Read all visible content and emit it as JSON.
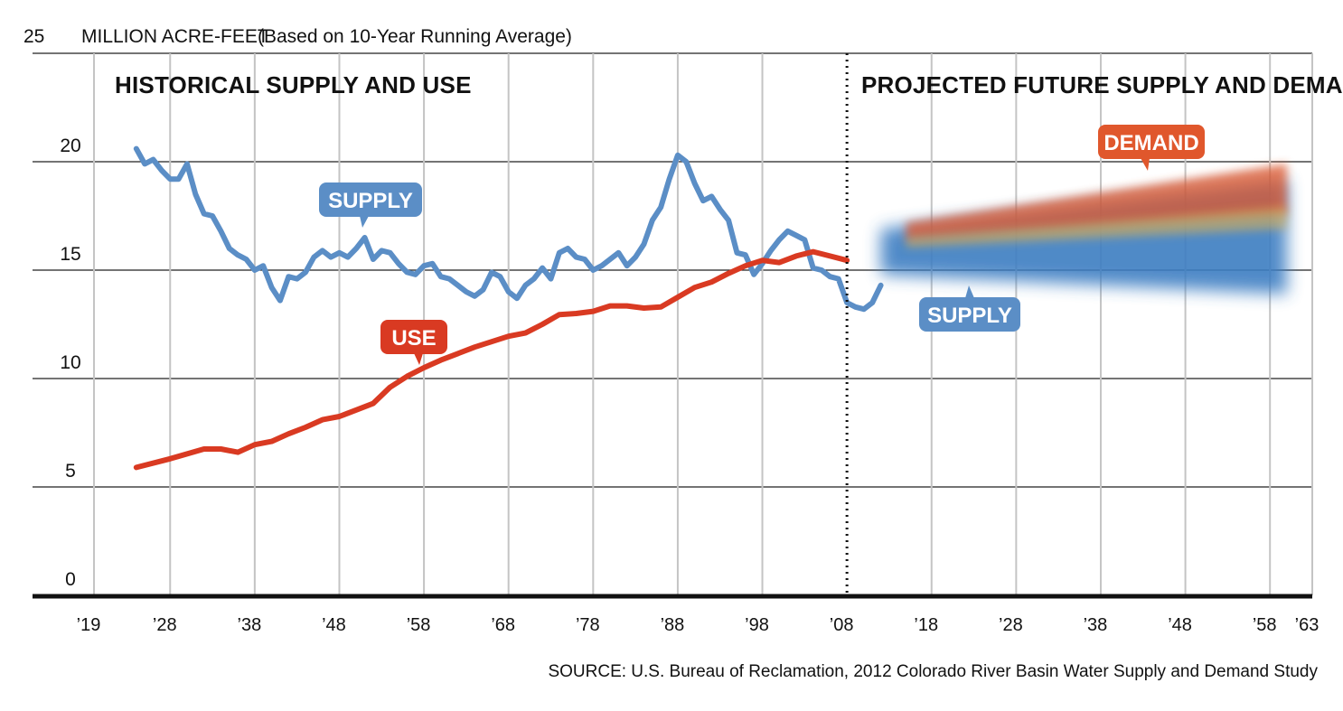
{
  "chart_data": {
    "type": "line",
    "title_units": "MILLION ACRE-FEET",
    "title_note": "(Based on 10-Year Running Average)",
    "section_historical": "HISTORICAL SUPPLY AND USE",
    "section_projected": "PROJECTED FUTURE SUPPLY AND DEMAND",
    "source": "SOURCE: U.S. Bureau of Reclamation, 2012 Colorado River Basin Water Supply and Demand Study",
    "ylim": [
      0,
      25
    ],
    "yticks": [
      0,
      5,
      10,
      15,
      20,
      25
    ],
    "xlim": [
      1919,
      2063
    ],
    "xticks": [
      {
        "year": 1919,
        "label": "’19"
      },
      {
        "year": 1928,
        "label": "’28"
      },
      {
        "year": 1938,
        "label": "’38"
      },
      {
        "year": 1948,
        "label": "’48"
      },
      {
        "year": 1958,
        "label": "’58"
      },
      {
        "year": 1968,
        "label": "’68"
      },
      {
        "year": 1978,
        "label": "’78"
      },
      {
        "year": 1988,
        "label": "’88"
      },
      {
        "year": 1998,
        "label": "’98"
      },
      {
        "year": 2008,
        "label": "’08"
      },
      {
        "year": 2018,
        "label": "’18"
      },
      {
        "year": 2028,
        "label": "’28"
      },
      {
        "year": 2038,
        "label": "’38"
      },
      {
        "year": 2048,
        "label": "’48"
      },
      {
        "year": 2058,
        "label": "’58"
      },
      {
        "year": 2063,
        "label": "’63"
      }
    ],
    "divider_year": 2008,
    "series": [
      {
        "name": "SUPPLY",
        "color": "#5b8ec6",
        "x": [
          1924,
          1925,
          1926,
          1927,
          1928,
          1929,
          1930,
          1931,
          1932,
          1933,
          1934,
          1935,
          1936,
          1937,
          1938,
          1939,
          1940,
          1941,
          1942,
          1943,
          1944,
          1945,
          1946,
          1947,
          1948,
          1949,
          1950,
          1951,
          1952,
          1953,
          1954,
          1955,
          1956,
          1957,
          1958,
          1959,
          1960,
          1961,
          1962,
          1963,
          1964,
          1965,
          1966,
          1967,
          1968,
          1969,
          1970,
          1971,
          1972,
          1973,
          1974,
          1975,
          1976,
          1977,
          1978,
          1979,
          1980,
          1981,
          1982,
          1983,
          1984,
          1985,
          1986,
          1987,
          1988,
          1989,
          1990,
          1991,
          1992,
          1993,
          1994,
          1995,
          1996,
          1997,
          1998,
          1999,
          2000,
          2001,
          2002,
          2003,
          2004,
          2005,
          2006,
          2007,
          2008,
          2009,
          2010,
          2011,
          2012
        ],
        "values": [
          20.6,
          19.9,
          20.1,
          19.6,
          19.2,
          19.2,
          19.9,
          18.5,
          17.6,
          17.5,
          16.8,
          16.0,
          15.7,
          15.5,
          15.0,
          15.2,
          14.2,
          13.6,
          14.7,
          14.6,
          14.9,
          15.6,
          15.9,
          15.6,
          15.8,
          15.6,
          16.0,
          16.5,
          15.5,
          15.9,
          15.8,
          15.3,
          14.9,
          14.8,
          15.2,
          15.3,
          14.7,
          14.6,
          14.3,
          14.0,
          13.8,
          14.1,
          14.9,
          14.7,
          14.0,
          13.7,
          14.3,
          14.6,
          15.1,
          14.6,
          15.8,
          16.0,
          15.6,
          15.5,
          15.0,
          15.2,
          15.5,
          15.8,
          15.2,
          15.6,
          16.2,
          17.3,
          17.9,
          19.2,
          20.3,
          20.0,
          19.0,
          18.2,
          18.4,
          17.8,
          17.3,
          15.8,
          15.7,
          14.8,
          15.3,
          15.9,
          16.4,
          16.8,
          16.6,
          16.4,
          15.1,
          15.0,
          14.7,
          14.6,
          13.5,
          13.3,
          13.2,
          13.5,
          14.3
        ]
      },
      {
        "name": "USE",
        "color": "#d93a22",
        "x": [
          1924,
          1928,
          1932,
          1934,
          1936,
          1938,
          1940,
          1942,
          1944,
          1946,
          1948,
          1950,
          1952,
          1954,
          1956,
          1958,
          1960,
          1962,
          1964,
          1966,
          1968,
          1970,
          1972,
          1974,
          1976,
          1978,
          1980,
          1982,
          1984,
          1986,
          1988,
          1990,
          1992,
          1994,
          1996,
          1998,
          2000,
          2002,
          2004,
          2006,
          2008
        ],
        "values": [
          5.9,
          6.3,
          6.75,
          6.75,
          6.6,
          6.95,
          7.1,
          7.45,
          7.75,
          8.1,
          8.25,
          8.55,
          8.85,
          9.6,
          10.1,
          10.5,
          10.85,
          11.15,
          11.45,
          11.7,
          11.95,
          12.1,
          12.5,
          12.95,
          13.0,
          13.1,
          13.35,
          13.35,
          13.25,
          13.3,
          13.75,
          14.2,
          14.45,
          14.85,
          15.2,
          15.45,
          15.35,
          15.65,
          15.85,
          15.65,
          15.45
        ]
      },
      {
        "name": "SUPPLY",
        "projected": true,
        "color": "#3e7ec2",
        "x": [
          2012,
          2060
        ],
        "band_low": [
          14.8,
          13.9
        ],
        "band_high": [
          16.9,
          19.2
        ]
      },
      {
        "name": "DEMAND",
        "projected": true,
        "color": "#e0572c",
        "x": [
          2015,
          2060
        ],
        "band_low": [
          16.4,
          17.6
        ],
        "band_high": [
          17.2,
          19.9
        ]
      }
    ],
    "callouts": {
      "supply_hist": "SUPPLY",
      "use_hist": "USE",
      "supply_proj": "SUPPLY",
      "demand_proj": "DEMAND"
    },
    "ytick_labels": [
      "0",
      "5",
      "10",
      "15",
      "20",
      "25"
    ]
  }
}
